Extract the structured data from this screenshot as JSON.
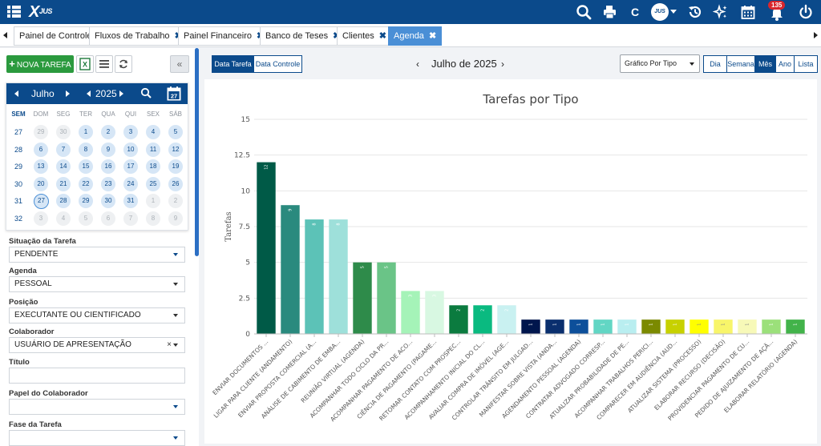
{
  "topbar": {
    "logo_text": "JUS",
    "user_initials": "JUS",
    "notification_count": "135",
    "contrast_label": "C",
    "icons": [
      "menu-icon",
      "search-icon",
      "print-icon",
      "contrast-icon",
      "avatar",
      "history-icon",
      "sparkle-icon",
      "calendar-icon",
      "bell-icon",
      "power-icon"
    ]
  },
  "tabs": [
    {
      "label": "Painel de Controle",
      "closable": false,
      "active": false
    },
    {
      "label": "Fluxos de Trabalho",
      "closable": true,
      "active": false
    },
    {
      "label": "Painel Financeiro",
      "closable": true,
      "active": false
    },
    {
      "label": "Banco de Teses",
      "closable": true,
      "active": false
    },
    {
      "label": "Clientes",
      "closable": true,
      "active": false
    },
    {
      "label": "Agenda",
      "closable": true,
      "active": true
    }
  ],
  "sidebar": {
    "nova_tarefa_label": "NOVA TAREFA",
    "collapse_label": "«",
    "calendar": {
      "month": "Julho",
      "year": "2025",
      "week_header": "SEM",
      "days_of_week": [
        "DOM",
        "SEG",
        "TER",
        "QUA",
        "QUI",
        "SEX",
        "SÁB"
      ],
      "calendar_icon_day": "27",
      "weeks": [
        {
          "wk": "27",
          "days": [
            [
              "29",
              "out"
            ],
            [
              "30",
              "out"
            ],
            [
              "1",
              "in"
            ],
            [
              "2",
              "in"
            ],
            [
              "3",
              "in"
            ],
            [
              "4",
              "in"
            ],
            [
              "5",
              "in"
            ]
          ]
        },
        {
          "wk": "28",
          "days": [
            [
              "6",
              "in"
            ],
            [
              "7",
              "in"
            ],
            [
              "8",
              "in"
            ],
            [
              "9",
              "in"
            ],
            [
              "10",
              "in"
            ],
            [
              "11",
              "in"
            ],
            [
              "12",
              "in"
            ]
          ]
        },
        {
          "wk": "29",
          "days": [
            [
              "13",
              "in"
            ],
            [
              "14",
              "in"
            ],
            [
              "15",
              "in"
            ],
            [
              "16",
              "in"
            ],
            [
              "17",
              "in"
            ],
            [
              "18",
              "in"
            ],
            [
              "19",
              "in"
            ]
          ]
        },
        {
          "wk": "30",
          "days": [
            [
              "20",
              "in"
            ],
            [
              "21",
              "in"
            ],
            [
              "22",
              "in"
            ],
            [
              "23",
              "in"
            ],
            [
              "24",
              "in"
            ],
            [
              "25",
              "in"
            ],
            [
              "26",
              "in"
            ]
          ]
        },
        {
          "wk": "31",
          "days": [
            [
              "27",
              "today"
            ],
            [
              "28",
              "in"
            ],
            [
              "29",
              "in"
            ],
            [
              "30",
              "in"
            ],
            [
              "31",
              "in"
            ],
            [
              "1",
              "out"
            ],
            [
              "2",
              "out"
            ]
          ]
        },
        {
          "wk": "32",
          "days": [
            [
              "3",
              "out"
            ],
            [
              "4",
              "out"
            ],
            [
              "5",
              "out"
            ],
            [
              "6",
              "out"
            ],
            [
              "7",
              "out"
            ],
            [
              "8",
              "out"
            ],
            [
              "9",
              "out"
            ]
          ]
        }
      ]
    },
    "filters": [
      {
        "label": "Situação da Tarefa",
        "value": "PENDENTE",
        "caret": "blue",
        "clearable": false
      },
      {
        "label": "Agenda",
        "value": "PESSOAL",
        "caret": "dark",
        "clearable": false
      },
      {
        "label": "Posição",
        "value": "EXECUTANTE OU CIENTIFICADO",
        "caret": "dark",
        "clearable": false
      },
      {
        "label": "Colaborador",
        "value": "USUÁRIO DE APRESENTAÇÃO",
        "caret": "dark",
        "clearable": true
      },
      {
        "label": "Título",
        "value": "",
        "caret": "none",
        "clearable": false
      },
      {
        "label": "Papel do Colaborador",
        "value": "",
        "caret": "blue",
        "clearable": false
      },
      {
        "label": "Fase da Tarefa",
        "value": "",
        "caret": "blue",
        "clearable": false
      }
    ]
  },
  "main": {
    "view_toggle": [
      "Data Tarefa",
      "Data Controle"
    ],
    "active_view": "Data Tarefa",
    "period_label": "Julho de 2025",
    "chart_select": "Gráfico Por Tipo",
    "range_buttons": [
      "Dia",
      "Semana",
      "Mês",
      "Ano",
      "Lista"
    ],
    "active_range": "Mês"
  },
  "chart_data": {
    "type": "bar",
    "title": "Tarefas por Tipo",
    "xlabel": "",
    "ylabel": "Tarefas",
    "ylim": [
      0,
      15
    ],
    "yticks": [
      "0",
      "2.5",
      "5",
      "7.5",
      "10",
      "12.5",
      "15"
    ],
    "grid": true,
    "categories": [
      "ENVIAR DOCUMENTOS ...",
      "LIGAR PARA CLIENTE (ANDAMENTO)",
      "ENVIAR PROPOSTA COMERCIAL (A...",
      "ANÁLISE DE CABIMENTO DE EMBA...",
      "REUNIÃO VIRTUAL (AGENDA)",
      "ACOMPANHAR TODO CICLO DA PR...",
      "ACOMPANHAR PAGAMENTO DE ACO...",
      "CIÊNCIA DE PAGAMENTO (PAGAME...",
      "RETOMAR CONTATO COM PROSPEC...",
      "ACOMPANHAMENTO INICIAL DO CL...",
      "AVALIAR COMPRA DE IMÓVEL (AGE...",
      "CONTROLAR TRÂNSITO EM JULGAD...",
      "MANIFESTAR SOBRE VISTA (ANDA...",
      "AGENDAMENTO PESSOAL (AGENDA)",
      "CONTRATAR ADVOGADO CORRESP...",
      "ATUALIZAR PROBABILIDADE DE PE...",
      "ACOMPANHAR TRABALHOS PERICI...",
      "COMPARECER EM AUDIÊNCIA (AUD...",
      "ATUALIZAR SISTEMA (PROCESSO)",
      "ELABORAR RECURSO (DECISÃO)",
      "PROVIDENCIAR PAGAMENTO DE CU...",
      "PEDIDO DE AJUIZAMENTO DE AÇÃ...",
      "ELABORAR RELATÓRIO (AGENDA)"
    ],
    "values": [
      12,
      9,
      8,
      8,
      5,
      5,
      3,
      3,
      2,
      2,
      2,
      1,
      1,
      1,
      1,
      1,
      1,
      1,
      1,
      1,
      1,
      1,
      1
    ],
    "colors": [
      "#005a47",
      "#2a8a7e",
      "#5cc2b7",
      "#9ee0da",
      "#2e8b4a",
      "#6ac487",
      "#a5f3b8",
      "#d8f8e2",
      "#0b7b3f",
      "#0aba80",
      "#c9f1f1",
      "#00164d",
      "#0a2f6e",
      "#0d4f9a",
      "#62d6c4",
      "#b9eef0",
      "#7b8a00",
      "#c7d100",
      "#ffff00",
      "#f8f56a",
      "#f7f9b8",
      "#9be07a",
      "#42b34a"
    ]
  }
}
